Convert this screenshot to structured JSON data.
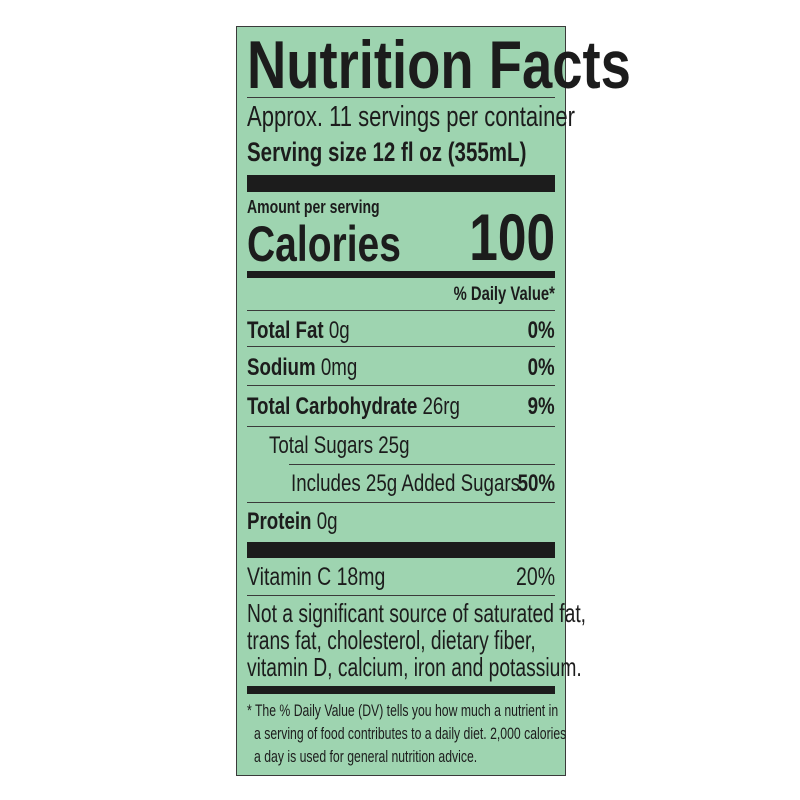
{
  "colors": {
    "background": "#9ed4b0",
    "ink": "#1c1c1c"
  },
  "title": "Nutrition Facts",
  "servings": "Approx. 11 servings per container",
  "serving_size": {
    "label": "Serving size",
    "value": "12 fl oz (355mL)"
  },
  "amount_per_serving": "Amount per serving",
  "calories": {
    "label": "Calories",
    "value": "100"
  },
  "daily_value_header": "% Daily Value*",
  "nutrients": [
    {
      "name": "Total Fat",
      "amount": "0g",
      "dv": "0%"
    },
    {
      "name": "Sodium",
      "amount": "0mg",
      "dv": "0%"
    },
    {
      "name": "Total Carbohydrate",
      "amount": "26rg",
      "dv": "9%"
    },
    {
      "name": "Total Sugars 25g"
    },
    {
      "name": "Includes 25g Added Sugars",
      "dv": "50%"
    },
    {
      "name": "Protein",
      "amount": "0g"
    }
  ],
  "vitamin": {
    "name": "Vitamin C 18mg",
    "dv": "20%"
  },
  "not_significant": [
    "Not a significant source of saturated fat,",
    "trans fat, cholesterol, dietary fiber,",
    "vitamin D, calcium, iron and potassium."
  ],
  "footnote": [
    "* The % Daily Value (DV) tells you how much a nutrient in",
    "a serving of food contributes to a daily diet. 2,000 calories",
    "a day is used for general nutrition advice."
  ]
}
